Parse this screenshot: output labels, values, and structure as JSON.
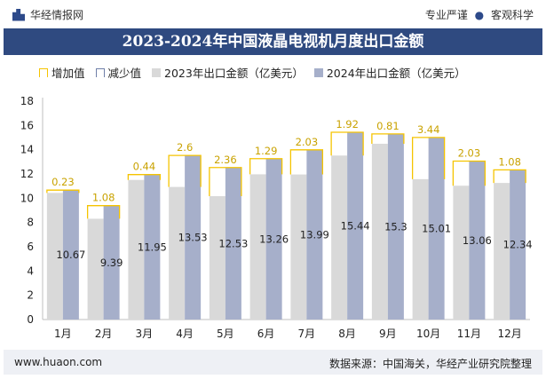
{
  "header": {
    "brand": "华经情报网",
    "tag1": "专业严谨",
    "tag_sep": "●",
    "tag2": "客观科学"
  },
  "title": "2023-2024年中国液晶电视机月度出口金额",
  "legend": {
    "increase": "增加值",
    "decrease": "减少值",
    "y2023": "2023年出口金额（亿美元）",
    "y2024": "2024年出口金额（亿美元）"
  },
  "colors": {
    "bar2023": "#d9d9d9",
    "bar2024": "#a6afca",
    "increase": "#f5c400",
    "decrease": "#6f7fa8",
    "title_bg": "#2f4a80"
  },
  "footer": {
    "url": "www.huaon.com",
    "source": "数据来源：中国海关，华经产业研究院整理"
  },
  "chart_data": {
    "type": "bar",
    "categories": [
      "1月",
      "2月",
      "3月",
      "4月",
      "5月",
      "6月",
      "7月",
      "8月",
      "9月",
      "10月",
      "11月",
      "12月"
    ],
    "series": [
      {
        "name": "2023年出口金额（亿美元）",
        "values": [
          10.44,
          8.31,
          11.51,
          10.93,
          10.17,
          11.97,
          11.96,
          13.52,
          14.49,
          11.57,
          11.03,
          11.26
        ]
      },
      {
        "name": "2024年出口金额（亿美元）",
        "values": [
          10.67,
          9.39,
          11.95,
          13.53,
          12.53,
          13.26,
          13.99,
          15.44,
          15.3,
          15.01,
          13.06,
          12.34
        ]
      }
    ],
    "change_labels": [
      "0.23",
      "1.08",
      "0.44",
      "2.6",
      "2.36",
      "1.29",
      "2.03",
      "1.92",
      "0.81",
      "3.44",
      "2.03",
      "1.08"
    ],
    "value_labels_2024": [
      "10.67",
      "9.39",
      "11.95",
      "13.53",
      "12.53",
      "13.26",
      "13.99",
      "15.44",
      "15.3",
      "15.01",
      "13.06",
      "12.34"
    ],
    "y_ticks": [
      "0",
      "2",
      "4",
      "6",
      "8",
      "10",
      "12",
      "14",
      "16",
      "18"
    ],
    "ylim": [
      0,
      18
    ],
    "xlabel": "",
    "ylabel": "",
    "grid": false,
    "legend_position": "top"
  }
}
